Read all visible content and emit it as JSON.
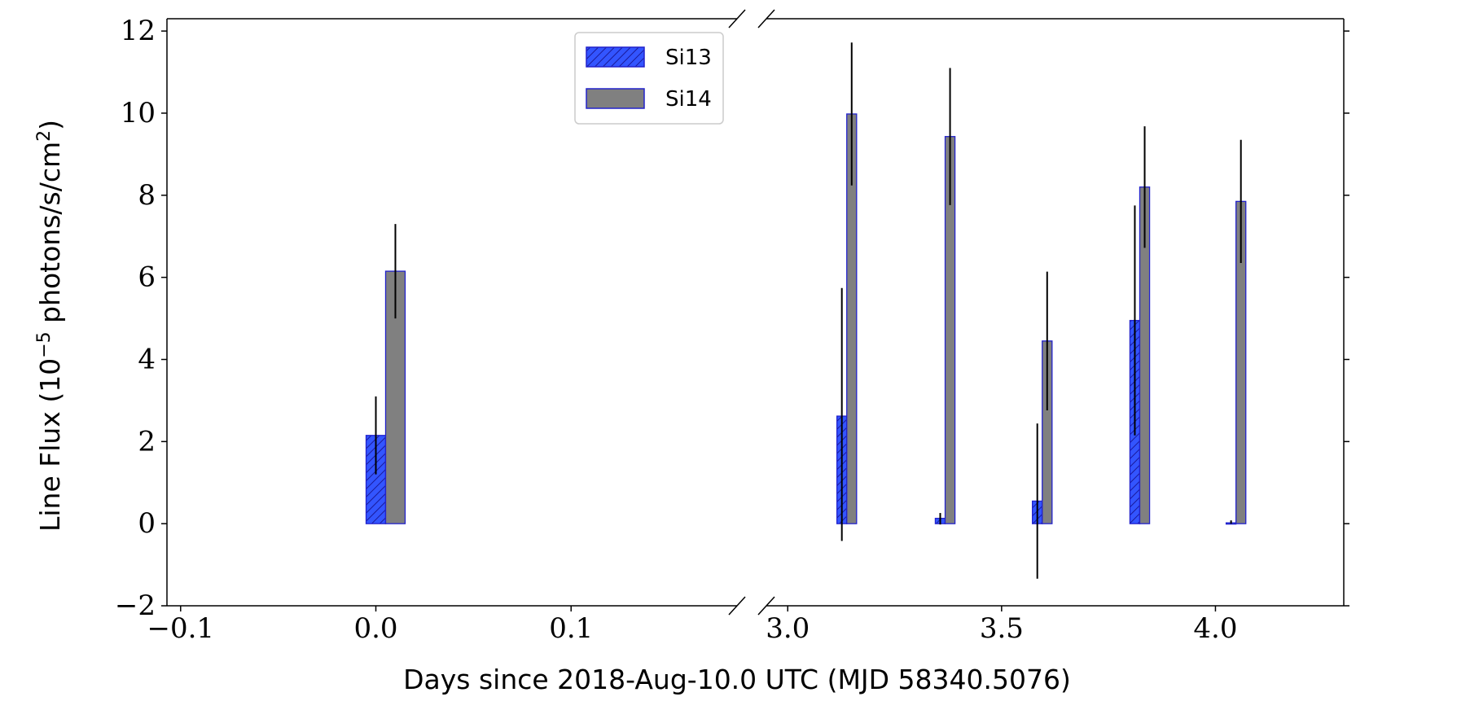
{
  "chart_data": {
    "type": "bar",
    "xlabel": "Days since 2018-Aug-10.0 UTC (MJD 58340.5076)",
    "ylabel": "Line Flux (10",
    "ylabel_exp": "−5",
    "ylabel_tail": " photons/s/cm",
    "ylabel_sup": "2",
    "ylabel_close": ")",
    "ylim": [
      -2,
      12.3
    ],
    "yticks": [
      -2,
      0,
      2,
      4,
      6,
      8,
      10,
      12
    ],
    "ytick_labels": [
      "−2",
      "0",
      "2",
      "4",
      "6",
      "8",
      "10",
      "12"
    ],
    "broken_x_axis": true,
    "x_segments": [
      {
        "xlim": [
          -0.107,
          0.185
        ],
        "ticks": [
          -0.1,
          0.0,
          0.1
        ],
        "tick_labels": [
          "−0.1",
          "0.0",
          "0.1"
        ]
      },
      {
        "xlim": [
          2.95,
          4.3
        ],
        "ticks": [
          3.0,
          3.5,
          4.0
        ],
        "tick_labels": [
          "3.0",
          "3.5",
          "4.0"
        ]
      }
    ],
    "series": [
      {
        "name": "Si13",
        "color": "#3355ff",
        "edge": "#2222cc",
        "hatch": true,
        "points": [
          {
            "x0": -0.005,
            "x1": 0.005,
            "y": 2.15,
            "err_lo": 1.2,
            "err_hi": 3.1
          },
          {
            "x0": 3.115,
            "x1": 3.138,
            "y": 2.62,
            "err_lo": -0.42,
            "err_hi": 5.74
          },
          {
            "x0": 3.345,
            "x1": 3.368,
            "y": 0.13,
            "err_lo": -0.02,
            "err_hi": 0.26
          },
          {
            "x0": 3.572,
            "x1": 3.595,
            "y": 0.55,
            "err_lo": -1.34,
            "err_hi": 2.44
          },
          {
            "x0": 3.8,
            "x1": 3.823,
            "y": 4.95,
            "err_lo": 2.15,
            "err_hi": 7.75
          },
          {
            "x0": 4.025,
            "x1": 4.048,
            "y": 0.02,
            "err_lo": 0.0,
            "err_hi": 0.08
          }
        ]
      },
      {
        "name": "Si14",
        "color": "#808080",
        "edge": "#2222cc",
        "hatch": false,
        "points": [
          {
            "x0": 0.005,
            "x1": 0.015,
            "y": 6.15,
            "err_lo": 5.0,
            "err_hi": 7.3
          },
          {
            "x0": 3.138,
            "x1": 3.161,
            "y": 9.98,
            "err_lo": 8.24,
            "err_hi": 11.72
          },
          {
            "x0": 3.368,
            "x1": 3.391,
            "y": 9.43,
            "err_lo": 7.76,
            "err_hi": 11.1
          },
          {
            "x0": 3.595,
            "x1": 3.618,
            "y": 4.45,
            "err_lo": 2.76,
            "err_hi": 6.14
          },
          {
            "x0": 3.823,
            "x1": 3.846,
            "y": 8.2,
            "err_lo": 6.72,
            "err_hi": 9.68
          },
          {
            "x0": 4.048,
            "x1": 4.071,
            "y": 7.85,
            "err_lo": 6.35,
            "err_hi": 9.35
          }
        ]
      }
    ],
    "legend": {
      "placement": "top-center-left",
      "entries": [
        "Si13",
        "Si14"
      ]
    },
    "grid": false
  }
}
